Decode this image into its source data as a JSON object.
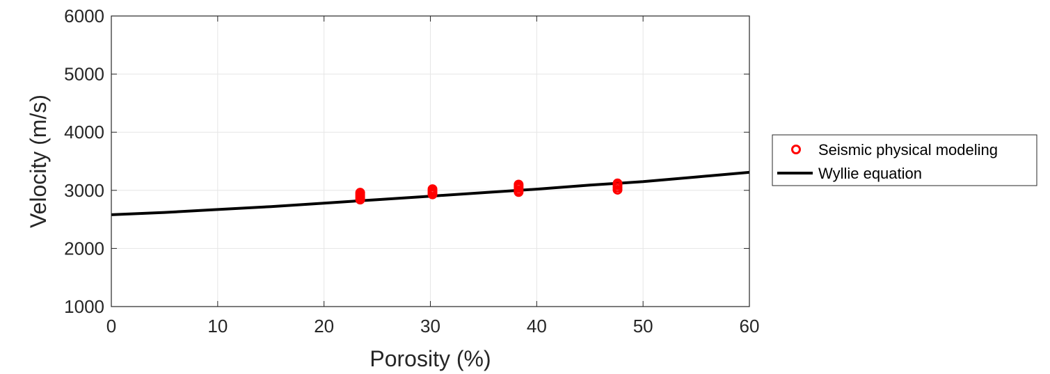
{
  "chart_data": {
    "type": "scatter",
    "xlabel": "Porosity (%)",
    "ylabel": "Velocity (m/s)",
    "xlim": [
      0,
      60
    ],
    "ylim": [
      1000,
      6000
    ],
    "xticks": [
      "0",
      "10",
      "20",
      "30",
      "40",
      "50",
      "60"
    ],
    "yticks": [
      "1000",
      "2000",
      "3000",
      "4000",
      "5000",
      "6000"
    ],
    "grid": true,
    "legend_position": "outside-right",
    "series": [
      {
        "name": "Seismic physical modeling",
        "type": "scatter",
        "marker": "circle-open",
        "color": "#ff0000",
        "points": [
          [
            23.4,
            2840
          ],
          [
            23.4,
            2870
          ],
          [
            23.4,
            2900
          ],
          [
            23.4,
            2930
          ],
          [
            23.4,
            2960
          ],
          [
            30.2,
            2930
          ],
          [
            30.2,
            2960
          ],
          [
            30.2,
            2990
          ],
          [
            30.2,
            3020
          ],
          [
            38.3,
            2970
          ],
          [
            38.3,
            3000
          ],
          [
            38.3,
            3040
          ],
          [
            38.3,
            3070
          ],
          [
            38.3,
            3100
          ],
          [
            47.6,
            3010
          ],
          [
            47.6,
            3050
          ],
          [
            47.6,
            3090
          ],
          [
            47.6,
            3120
          ]
        ]
      },
      {
        "name": "Wyllie equation",
        "type": "line",
        "color": "#000000",
        "points": [
          [
            0,
            2580
          ],
          [
            5,
            2620
          ],
          [
            10,
            2670
          ],
          [
            15,
            2720
          ],
          [
            20,
            2780
          ],
          [
            25,
            2840
          ],
          [
            30,
            2900
          ],
          [
            35,
            2960
          ],
          [
            40,
            3020
          ],
          [
            45,
            3090
          ],
          [
            50,
            3150
          ],
          [
            55,
            3230
          ],
          [
            60,
            3310
          ]
        ]
      }
    ]
  }
}
